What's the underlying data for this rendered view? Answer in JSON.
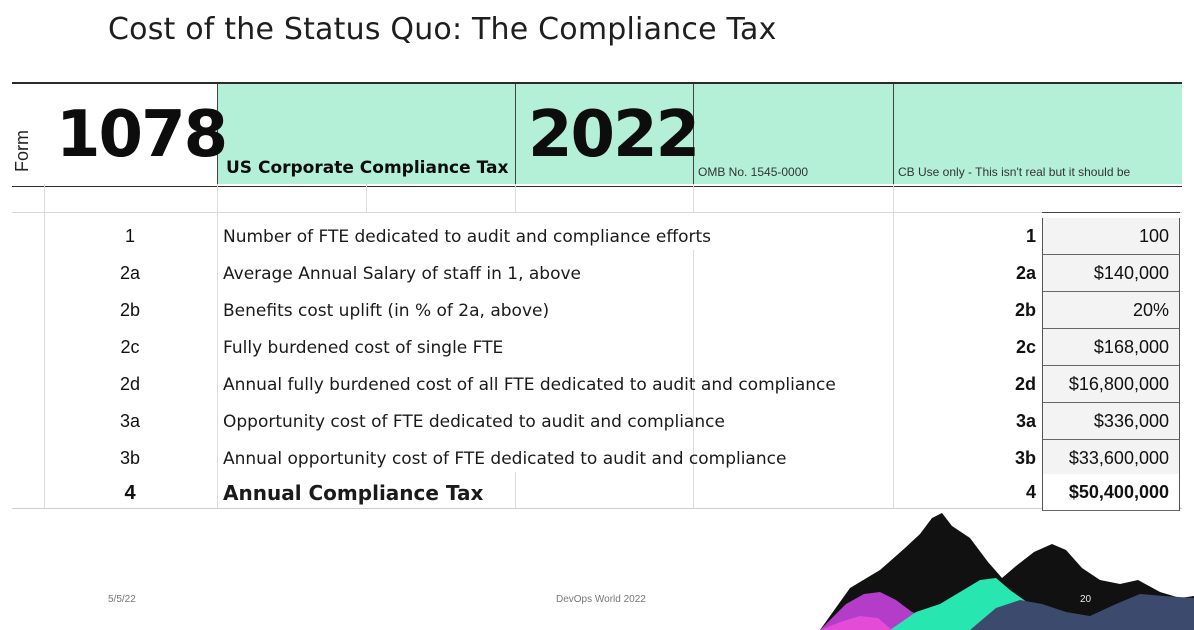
{
  "slide": {
    "title": "Cost of the Status Quo: The Compliance Tax"
  },
  "form": {
    "form_label": "Form",
    "number": "1078",
    "name": "US Corporate Compliance Tax",
    "year": "2022",
    "omb": "OMB No. 1545-0000",
    "cb_note": "CB Use only - This isn't real but it should be",
    "header_color": "#b3f0d7"
  },
  "rows": [
    {
      "num": "1",
      "desc": "Number of FTE dedicated to audit and compliance efforts",
      "line": "1",
      "value": "100"
    },
    {
      "num": "2a",
      "desc": "Average Annual Salary of staff in 1, above",
      "line": "2a",
      "value": "$140,000"
    },
    {
      "num": "2b",
      "desc": "Benefits cost uplift (in % of 2a, above)",
      "line": "2b",
      "value": "20%"
    },
    {
      "num": "2c",
      "desc": "Fully burdened cost of single FTE",
      "line": "2c",
      "value": "$168,000"
    },
    {
      "num": "2d",
      "desc": "Annual fully burdened cost of all FTE dedicated to audit and compliance",
      "line": "2d",
      "value": "$16,800,000"
    },
    {
      "num": "3a",
      "desc": "Opportunity cost of FTE dedicated to audit and compliance",
      "line": "3a",
      "value": "$336,000"
    },
    {
      "num": "3b",
      "desc": "Annual opportunity cost of FTE dedicated to audit and compliance",
      "line": "3b",
      "value": "$33,600,000"
    },
    {
      "num": "4",
      "desc": "Annual Compliance Tax",
      "line": "4",
      "value": "$50,400,000"
    }
  ],
  "footer": {
    "date": "5/5/22",
    "event": "DevOps World 2022",
    "page": "20"
  }
}
